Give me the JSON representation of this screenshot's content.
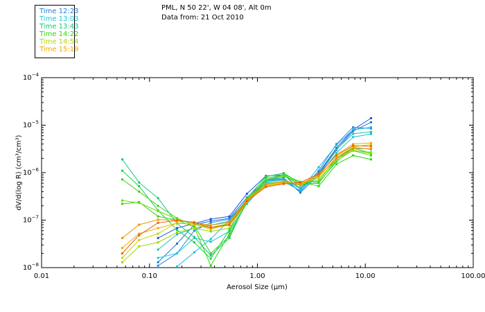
{
  "header": {
    "location": "PML, N 50 22', W 04 08', Alt 0m",
    "date": "Data from: 21 Oct 2010"
  },
  "legend": [
    {
      "label": "Time 12:23",
      "color": "#1f7fe0"
    },
    {
      "label": "Time 13:03",
      "color": "#19c8d8"
    },
    {
      "label": "Time 13:43",
      "color": "#12c87a"
    },
    {
      "label": "Time 14:22",
      "color": "#2ad80a"
    },
    {
      "label": "Time 14:54",
      "color": "#b4d600"
    },
    {
      "label": "Time 15:19",
      "color": "#f0a800"
    }
  ],
  "chart_data": {
    "type": "line",
    "xscale": "log",
    "yscale": "log",
    "xlabel": "Aerosol Size (µm)",
    "ylabel": "dV/d(log R) (cm³/cm³)",
    "xlim": [
      0.01,
      100
    ],
    "ylim": [
      1e-08,
      0.0001
    ],
    "x_ticks": [
      {
        "value": 0.01,
        "label": "0.01"
      },
      {
        "value": 0.1,
        "label": "0.10"
      },
      {
        "value": 1,
        "label": "1.00"
      },
      {
        "value": 10,
        "label": "10.00"
      },
      {
        "value": 100,
        "label": "100.00"
      }
    ],
    "y_ticks": [
      {
        "value": 1e-08,
        "mant": "10",
        "exp": "−8"
      },
      {
        "value": 1e-07,
        "mant": "10",
        "exp": "−7"
      },
      {
        "value": 1e-06,
        "mant": "10",
        "exp": "−6"
      },
      {
        "value": 1e-05,
        "mant": "10",
        "exp": "−5"
      },
      {
        "value": 0.0001,
        "mant": "10",
        "exp": "−4"
      }
    ],
    "grid": false,
    "legend_position": "top-left",
    "x": [
      0.056,
      0.08,
      0.12,
      0.18,
      0.26,
      0.37,
      0.55,
      0.8,
      1.2,
      1.75,
      2.5,
      3.7,
      5.4,
      7.7,
      11.3
    ],
    "series": [
      {
        "color": "#1f57d8",
        "values": [
          null,
          null,
          4.2e-08,
          6.8e-08,
          8.5e-08,
          1.05e-07,
          1.2e-07,
          3.6e-07,
          8.5e-07,
          9e-07,
          4.5e-07,
          1e-06,
          3.3e-06,
          8e-06,
          1.4e-05
        ]
      },
      {
        "color": "#1a6fe0",
        "values": [
          null,
          null,
          1.3e-08,
          3.2e-08,
          8e-08,
          9.5e-08,
          1.1e-07,
          3e-07,
          7e-07,
          7.8e-07,
          3.8e-07,
          9e-07,
          3e-06,
          7.5e-06,
          1.15e-05
        ]
      },
      {
        "color": "#2888e8",
        "values": [
          null,
          null,
          1.1e-08,
          2e-08,
          6e-08,
          8.8e-08,
          1.05e-07,
          2.6e-07,
          6.6e-07,
          7.2e-07,
          4e-07,
          1.1e-06,
          4e-06,
          9e-06,
          8.5e-06
        ]
      },
      {
        "color": "#1ab8e0",
        "values": [
          null,
          null,
          null,
          1.05e-08,
          2.1e-08,
          4e-08,
          1e-07,
          2.2e-07,
          6e-07,
          6.4e-07,
          4.2e-07,
          1.3e-06,
          3.8e-06,
          8e-06,
          9e-06
        ]
      },
      {
        "color": "#19c8d8",
        "values": [
          null,
          null,
          1.6e-08,
          2e-08,
          4.2e-08,
          3.5e-08,
          5.8e-08,
          2.4e-07,
          6.2e-07,
          7e-07,
          4.6e-07,
          8.5e-07,
          2.6e-06,
          5.6e-06,
          6.5e-06
        ]
      },
      {
        "color": "#20c0b0",
        "values": [
          null,
          null,
          2.4e-08,
          5e-08,
          6.8e-08,
          7.8e-08,
          9.6e-08,
          2.8e-07,
          6.8e-07,
          7.4e-07,
          4.8e-07,
          9.6e-07,
          3.1e-06,
          6.6e-06,
          7.2e-06
        ]
      },
      {
        "color": "#12c87a",
        "values": [
          1.9e-06,
          6.2e-07,
          2.9e-07,
          8.5e-08,
          4.4e-08,
          1.8e-08,
          4.2e-08,
          2.6e-07,
          7.6e-07,
          9e-07,
          5.4e-07,
          6.2e-07,
          1.7e-06,
          3.4e-06,
          3.1e-06
        ]
      },
      {
        "color": "#18d048",
        "values": [
          1.1e-06,
          5.2e-07,
          1.6e-07,
          6.2e-08,
          3.4e-08,
          1.55e-08,
          6.2e-08,
          2.9e-07,
          8.2e-07,
          9.8e-07,
          6e-07,
          6.6e-07,
          2.1e-06,
          3.3e-06,
          2.6e-06
        ]
      },
      {
        "color": "#2ad80a",
        "values": [
          2.2e-07,
          2.4e-07,
          1.2e-07,
          1e-07,
          7.2e-08,
          1.1e-08,
          5.2e-08,
          2.3e-07,
          6.8e-07,
          9.2e-07,
          6.4e-07,
          5.2e-07,
          1.5e-06,
          2.3e-06,
          1.9e-06
        ]
      },
      {
        "color": "#40d020",
        "values": [
          7.2e-07,
          4e-07,
          2e-07,
          1.1e-07,
          7.8e-08,
          2e-08,
          4.6e-08,
          2.5e-07,
          7e-07,
          8.4e-07,
          5.8e-07,
          6e-07,
          1.8e-06,
          2.9e-06,
          2.3e-06
        ]
      },
      {
        "color": "#70d818",
        "values": [
          2.6e-07,
          2.3e-07,
          1.55e-07,
          1.05e-07,
          8.5e-08,
          7e-08,
          8.5e-08,
          2.7e-07,
          7.2e-07,
          8.6e-07,
          6.2e-07,
          6.8e-07,
          1.95e-06,
          3e-06,
          2.5e-06
        ]
      },
      {
        "color": "#9cd600",
        "values": [
          1.3e-08,
          2.8e-08,
          3.4e-08,
          5.5e-08,
          6.8e-08,
          5.8e-08,
          6.8e-08,
          2.5e-07,
          5.8e-07,
          6.6e-07,
          5.8e-07,
          7.6e-07,
          1.8e-06,
          2.9e-06,
          2.7e-06
        ]
      },
      {
        "color": "#c8d200",
        "values": [
          1.6e-08,
          3.8e-08,
          5.2e-08,
          8.8e-08,
          8e-08,
          6.8e-08,
          7.8e-08,
          2.4e-07,
          5.4e-07,
          6.2e-07,
          6e-07,
          8.2e-07,
          2.1e-06,
          3.5e-06,
          3.9e-06
        ]
      },
      {
        "color": "#e8b000",
        "values": [
          2.6e-08,
          5.2e-08,
          6.8e-08,
          8.6e-08,
          8.2e-08,
          6.4e-08,
          8.5e-08,
          2.6e-07,
          5.2e-07,
          6e-07,
          5.8e-07,
          9e-07,
          2.4e-06,
          4e-06,
          4.2e-06
        ]
      },
      {
        "color": "#f09000",
        "values": [
          4.2e-08,
          8e-08,
          1.02e-07,
          1e-07,
          8.8e-08,
          7.8e-08,
          9e-08,
          2.7e-07,
          5.6e-07,
          6.4e-07,
          5.4e-07,
          8.6e-07,
          2e-06,
          3.2e-06,
          3.2e-06
        ]
      },
      {
        "color": "#e86000",
        "values": [
          2e-08,
          4.8e-08,
          8.8e-08,
          9.8e-08,
          9e-08,
          7e-08,
          8e-08,
          2.5e-07,
          5e-07,
          5.8e-07,
          6.2e-07,
          9.4e-07,
          2.3e-06,
          3.7e-06,
          3.6e-06
        ]
      }
    ]
  }
}
